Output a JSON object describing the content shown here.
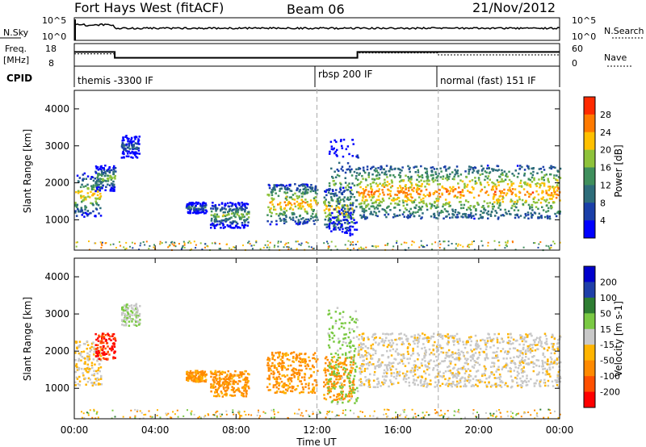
{
  "header": {
    "title": "Fort Hays West (fitACF)",
    "beam": "Beam 06",
    "date": "21/Nov/2012"
  },
  "time_axis": {
    "label": "Time UT",
    "ticks": [
      "00:00",
      "04:00",
      "08:00",
      "12:00",
      "16:00",
      "20:00",
      "00:00"
    ]
  },
  "noise_panel": {
    "left_label": "N.Sky",
    "right_label": "N.Search",
    "left_ticks": [
      "10^5",
      "10^0"
    ],
    "right_ticks": [
      "10^5",
      "10^0"
    ]
  },
  "freq_panel": {
    "left_label_1": "Freq.",
    "left_label_2": "[MHz]",
    "right_label": "Nave",
    "left_ticks": [
      "18",
      "8"
    ],
    "right_ticks": [
      "60",
      "0"
    ],
    "freq_series": {
      "t": [
        0,
        2.0,
        2.0,
        14.0,
        14.0,
        24
      ],
      "mhz": [
        14.5,
        14.5,
        11.5,
        11.5,
        14.5,
        14.5
      ]
    },
    "nave_series": {
      "t": [
        0,
        2.0,
        2.0,
        14.0,
        14.0,
        18.0,
        18.0,
        24
      ],
      "n": [
        33,
        33,
        20,
        20,
        36,
        36,
        30,
        30
      ]
    }
  },
  "cpid": {
    "label": "CPID",
    "segments": [
      {
        "text": "themis -3300 IF",
        "start": 0
      },
      {
        "text": "rbsp 200 IF",
        "start": 12
      },
      {
        "text": "normal (fast) 151 IF",
        "start": 18
      }
    ]
  },
  "power_panel": {
    "ylabel": "Slant Range [km]",
    "colorbar_label": "Power [dB]",
    "colorbar_ticks": [
      "28",
      "24",
      "20",
      "16",
      "12",
      "8",
      "4"
    ]
  },
  "velocity_panel": {
    "ylabel": "Slant Range [km]",
    "colorbar_label": "Velocity [m s-1]",
    "colorbar_ticks": [
      "200",
      "100",
      "50",
      "15",
      "-15",
      "-50",
      "-100",
      "-200"
    ]
  },
  "chart_data": {
    "type": "heatmap",
    "x_range_hours": [
      0,
      24
    ],
    "y_range_km": [
      180,
      4500
    ],
    "y_ticks": [
      "1000",
      "2000",
      "3000",
      "4000"
    ],
    "dashed_time_markers_hours": [
      12,
      18
    ],
    "scatter_regions": [
      {
        "t": [
          0,
          1.3
        ],
        "range_km": [
          1100,
          2300
        ],
        "power_db": 22,
        "velocity": -15
      },
      {
        "t": [
          1.0,
          2.0
        ],
        "range_km": [
          1800,
          2500
        ],
        "power_db": 18,
        "velocity": -200
      },
      {
        "t": [
          2.3,
          3.2
        ],
        "range_km": [
          2700,
          3300
        ],
        "power_db": 10,
        "velocity": 10
      },
      {
        "t": [
          5.5,
          6.5
        ],
        "range_km": [
          1200,
          1500
        ],
        "power_db": 12,
        "velocity": -60
      },
      {
        "t": [
          6.7,
          8.6
        ],
        "range_km": [
          800,
          1500
        ],
        "power_db": 18,
        "velocity": -60
      },
      {
        "t": [
          9.5,
          12.0
        ],
        "range_km": [
          900,
          2000
        ],
        "power_db": 24,
        "velocity": -60
      },
      {
        "t": [
          12.3,
          13.8
        ],
        "range_km": [
          700,
          1900
        ],
        "power_db": 22,
        "velocity": -60
      },
      {
        "t": [
          12.5,
          14.0
        ],
        "range_km": [
          600,
          3200
        ],
        "power_db": 16,
        "velocity": 30
      },
      {
        "t": [
          14.0,
          24.0
        ],
        "range_km": [
          1050,
          2500
        ],
        "power_db": 26,
        "velocity": -5
      }
    ]
  }
}
